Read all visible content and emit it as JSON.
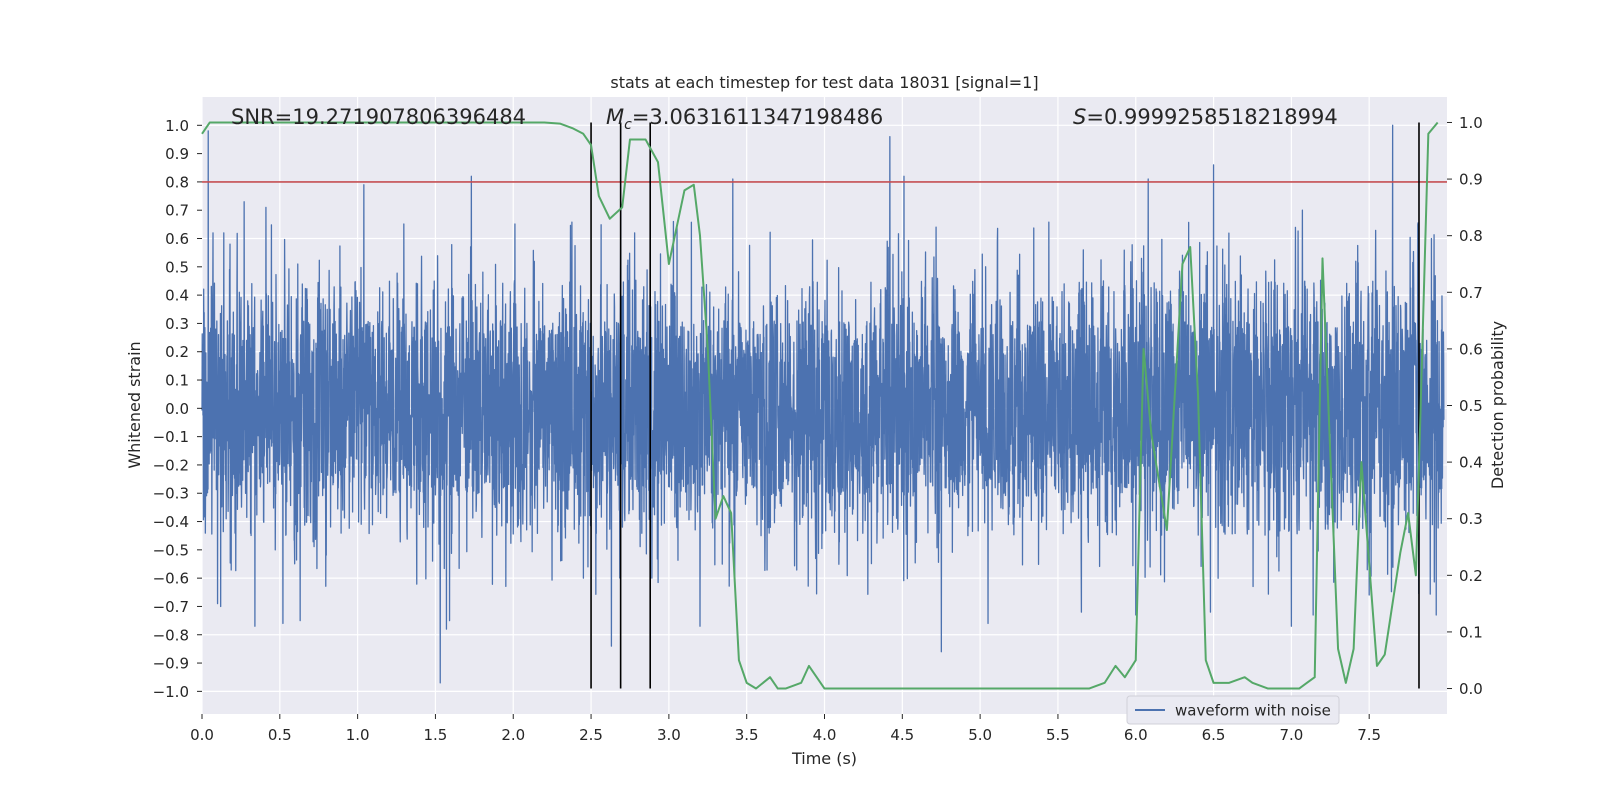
{
  "chart_data": {
    "type": "line",
    "title": "stats at each timestep for test data 18031 [signal=1]",
    "xlabel": "Time (s)",
    "ylabel": "Whitened strain",
    "y2label": "Detection probability",
    "xlim": [
      0.0,
      8.0
    ],
    "ylim": [
      -1.08,
      1.1
    ],
    "y2lim": [
      -0.045,
      1.045
    ],
    "xticks": [
      0.0,
      0.5,
      1.0,
      1.5,
      2.0,
      2.5,
      3.0,
      3.5,
      4.0,
      4.5,
      5.0,
      5.5,
      6.0,
      6.5,
      7.0,
      7.5
    ],
    "xtick_labels": [
      "0.0",
      "0.5",
      "1.0",
      "1.5",
      "2.0",
      "2.5",
      "3.0",
      "3.5",
      "4.0",
      "4.5",
      "5.0",
      "5.5",
      "6.0",
      "6.5",
      "7.0",
      "7.5"
    ],
    "yticks": [
      1.0,
      0.9,
      0.8,
      0.7,
      0.6,
      0.5,
      0.4,
      0.3,
      0.2,
      0.1,
      0.0,
      -0.1,
      -0.2,
      -0.3,
      -0.4,
      -0.5,
      -0.6,
      -0.7,
      -0.8,
      -0.9,
      -1.0
    ],
    "ytick_labels": [
      "1.0",
      "0.9",
      "0.8",
      "0.7",
      "0.6",
      "0.5",
      "0.4",
      "0.3",
      "0.2",
      "0.1",
      "0.0",
      "−0.1",
      "−0.2",
      "−0.3",
      "−0.4",
      "−0.5",
      "−0.6",
      "−0.7",
      "−0.8",
      "−0.9",
      "−1.0"
    ],
    "y2ticks": [
      1.0,
      0.9,
      0.8,
      0.7,
      0.6,
      0.5,
      0.4,
      0.3,
      0.2,
      0.1,
      0.0
    ],
    "y2tick_labels": [
      "1.0",
      "0.9",
      "0.8",
      "0.7",
      "0.6",
      "0.5",
      "0.4",
      "0.3",
      "0.2",
      "0.1",
      "0.0"
    ],
    "annotations": {
      "snr": "SNR=19.271907806396484",
      "mc_symbol": "M",
      "mc_sub": "c",
      "mc_value": "=3.0631611347198486",
      "s_symbol": "S",
      "s_value": "=0.9999258518218994"
    },
    "threshold_line": {
      "y": 0.8,
      "color": "#c44e52"
    },
    "vertical_lines": [
      2.5,
      2.69,
      2.88,
      7.82
    ],
    "waveform": {
      "name": "waveform with noise",
      "color": "#4c72b0",
      "typical_envelope": 0.4,
      "peaks": [
        {
          "t": 0.04,
          "v": 0.98
        },
        {
          "t": 0.07,
          "v": 0.62
        },
        {
          "t": 0.14,
          "v": 0.62
        },
        {
          "t": 0.18,
          "v": 0.58
        },
        {
          "t": 0.27,
          "v": 0.73
        },
        {
          "t": 0.41,
          "v": 0.71
        },
        {
          "t": 1.04,
          "v": 0.79
        },
        {
          "t": 1.73,
          "v": 0.82
        },
        {
          "t": 2.69,
          "v": 0.72
        },
        {
          "t": 2.78,
          "v": 0.62
        },
        {
          "t": 3.03,
          "v": 0.66
        },
        {
          "t": 3.41,
          "v": 0.81
        },
        {
          "t": 4.42,
          "v": 0.96
        },
        {
          "t": 4.51,
          "v": 0.82
        },
        {
          "t": 6.08,
          "v": 0.81
        },
        {
          "t": 6.5,
          "v": 0.86
        },
        {
          "t": 7.07,
          "v": 0.7
        },
        {
          "t": 7.65,
          "v": 1.0
        },
        {
          "t": 7.9,
          "v": 0.6
        }
      ],
      "troughs": [
        {
          "t": 0.1,
          "v": -0.62
        },
        {
          "t": 0.1,
          "v": -0.69
        },
        {
          "t": 0.12,
          "v": -0.7
        },
        {
          "t": 0.34,
          "v": -0.77
        },
        {
          "t": 0.52,
          "v": -0.76
        },
        {
          "t": 0.63,
          "v": -0.75
        },
        {
          "t": 1.53,
          "v": -0.97
        },
        {
          "t": 1.57,
          "v": -0.78
        },
        {
          "t": 1.59,
          "v": -0.75
        },
        {
          "t": 2.45,
          "v": -0.6
        },
        {
          "t": 2.48,
          "v": -0.56
        },
        {
          "t": 2.63,
          "v": -0.84
        },
        {
          "t": 2.89,
          "v": -0.6
        },
        {
          "t": 3.2,
          "v": -0.77
        },
        {
          "t": 4.75,
          "v": -0.86
        },
        {
          "t": 5.05,
          "v": -0.76
        },
        {
          "t": 5.65,
          "v": -0.72
        },
        {
          "t": 6.0,
          "v": -0.73
        },
        {
          "t": 6.48,
          "v": -0.72
        },
        {
          "t": 7.0,
          "v": -0.77
        },
        {
          "t": 7.14,
          "v": -0.73
        },
        {
          "t": 7.93,
          "v": -0.73
        }
      ]
    },
    "probability": {
      "name": "Detection probability",
      "color": "#55a868",
      "x": [
        0.0,
        0.05,
        0.15,
        0.3,
        0.5,
        1.0,
        1.5,
        2.0,
        2.2,
        2.3,
        2.38,
        2.45,
        2.5,
        2.55,
        2.62,
        2.7,
        2.75,
        2.85,
        2.93,
        3.0,
        3.1,
        3.16,
        3.2,
        3.25,
        3.3,
        3.35,
        3.4,
        3.45,
        3.5,
        3.56,
        3.65,
        3.7,
        3.75,
        3.85,
        3.9,
        4.0,
        4.1,
        4.5,
        5.0,
        5.5,
        5.7,
        5.8,
        5.87,
        5.93,
        6.0,
        6.05,
        6.1,
        6.2,
        6.3,
        6.35,
        6.4,
        6.45,
        6.5,
        6.6,
        6.7,
        6.75,
        6.85,
        6.95,
        7.05,
        7.1,
        7.15,
        7.2,
        7.3,
        7.35,
        7.4,
        7.45,
        7.55,
        7.6,
        7.7,
        7.75,
        7.8,
        7.88,
        7.94
      ],
      "y": [
        0.98,
        1.0,
        1.0,
        1.0,
        1.0,
        1.0,
        1.0,
        1.0,
        1.0,
        0.998,
        0.99,
        0.98,
        0.96,
        0.87,
        0.83,
        0.85,
        0.97,
        0.97,
        0.93,
        0.75,
        0.88,
        0.89,
        0.8,
        0.6,
        0.3,
        0.34,
        0.31,
        0.05,
        0.01,
        0.0,
        0.02,
        0.0,
        0.0,
        0.01,
        0.04,
        0.0,
        0.0,
        0.0,
        0.0,
        0.0,
        0.0,
        0.01,
        0.04,
        0.02,
        0.05,
        0.6,
        0.45,
        0.28,
        0.75,
        0.78,
        0.52,
        0.05,
        0.01,
        0.01,
        0.02,
        0.01,
        0.0,
        0.0,
        0.0,
        0.01,
        0.02,
        0.76,
        0.07,
        0.01,
        0.07,
        0.4,
        0.04,
        0.06,
        0.24,
        0.31,
        0.2,
        0.98,
        1.0
      ]
    },
    "legend": {
      "label": "waveform with noise",
      "placement": "lower-right"
    }
  }
}
